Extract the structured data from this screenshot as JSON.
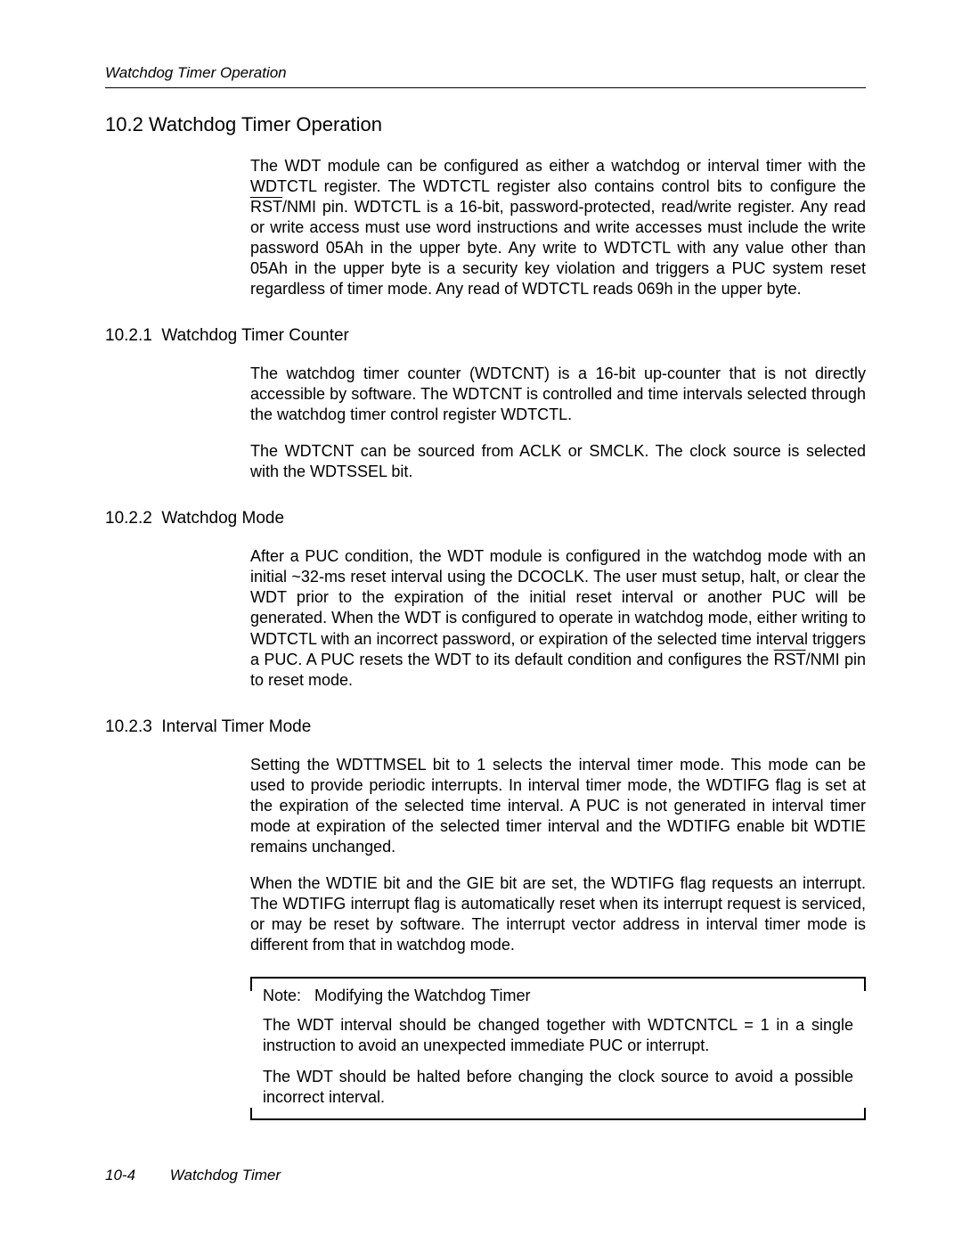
{
  "running_head": "Watchdog Timer Operation",
  "section": {
    "number": "10.2",
    "title": "Watchdog Timer Operation",
    "intro_before_rst": "The WDT module can be configured as either a watchdog or interval timer with the WDTCTL register. The WDTCTL register also contains control bits to configure the ",
    "rst_text": "RST",
    "intro_after_rst": "/NMI pin. WDTCTL is a 16-bit, password-protected, read/write register. Any read or write access must use word instructions and write accesses must include the write password 05Ah in the upper byte. Any write to WDTCTL with any value other than 05Ah in the upper byte is a security key violation and triggers a PUC system reset regardless of timer mode. Any read of WDTCTL reads 069h in the upper byte."
  },
  "sub1": {
    "number": "10.2.1",
    "title": "Watchdog Timer Counter",
    "p1": "The watchdog timer counter (WDTCNT) is a 16-bit up-counter that is not directly accessible by software. The WDTCNT is controlled and time intervals selected through the watchdog timer control register WDTCTL.",
    "p2": "The WDTCNT can be sourced from ACLK or SMCLK. The clock source is selected with the WDTSSEL bit."
  },
  "sub2": {
    "number": "10.2.2",
    "title": "Watchdog Mode",
    "p1_before_rst": "After a PUC condition, the WDT module is configured in the watchdog mode with an initial ~32-ms reset interval using the DCOCLK. The user must setup, halt, or clear the WDT prior to the expiration of the initial reset interval or another PUC will be generated. When the WDT is configured to operate in watchdog mode, either writing to WDTCTL with an incorrect password, or expiration of the selected time interval triggers a PUC. A PUC resets the WDT to its default condition and configures the ",
    "rst_text": "RST",
    "p1_after_rst": "/NMI pin to reset mode."
  },
  "sub3": {
    "number": "10.2.3",
    "title": "Interval Timer Mode",
    "p1": "Setting the WDTTMSEL bit to 1 selects the interval timer mode. This mode can be used to provide periodic interrupts. In interval timer mode, the WDTIFG flag is set at the expiration of the selected time interval. A PUC is not generated in interval timer mode at expiration of the selected timer interval and the WDTIFG enable bit WDTIE remains unchanged.",
    "p2": "When the WDTIE bit and the GIE bit are set, the WDTIFG flag requests an interrupt. The WDTIFG interrupt flag is automatically reset when its interrupt request is serviced, or may be reset by software. The interrupt vector address in interval timer mode is different from that in watchdog mode."
  },
  "note": {
    "label": "Note:",
    "title": "Modifying the Watchdog Timer",
    "p1": "The WDT interval should be changed together with WDTCNTCL = 1 in a single instruction to avoid an unexpected immediate PUC or interrupt.",
    "p2": "The WDT should be halted before changing the clock source to avoid a possible incorrect interval."
  },
  "footer": {
    "page": "10-4",
    "chapter": "Watchdog Timer"
  }
}
